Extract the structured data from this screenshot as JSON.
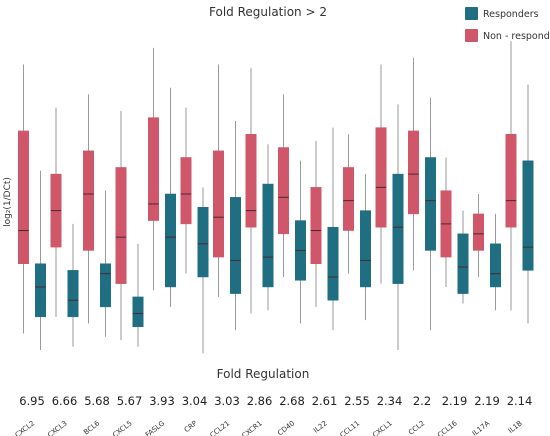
{
  "chart_data": {
    "type": "box",
    "title": "Fold Regulation > 2",
    "ylabel": "log₂(1/DCt)",
    "xlabel": "Fold Regulation",
    "legend": {
      "position": "top-right"
    },
    "series": [
      {
        "name": "Responders",
        "color": "#1f6e82"
      },
      {
        "name": "Non - responder",
        "color": "#d0566a"
      }
    ],
    "ylim": [
      0,
      10
    ],
    "categories": [
      "CXCL2",
      "CXCL3",
      "BCL6",
      "CXCL5",
      "FASLG",
      "CRP",
      "CCL21",
      "CXCR1",
      "CD40",
      "IL22",
      "CCL11",
      "CXCL1",
      "CCL2",
      "CCL16",
      "IL17A",
      "IL1B"
    ],
    "fold_regulation": [
      "6.95",
      "6.66",
      "5.68",
      "5.67",
      "3.93",
      "3.04",
      "3.03",
      "2.86",
      "2.68",
      "2.61",
      "2.55",
      "2.34",
      "2.2",
      "2.19",
      "2.19",
      "2.14"
    ],
    "nonresponders": [
      {
        "min": 0.8,
        "q1": 2.9,
        "median": 3.9,
        "q3": 6.9,
        "max": 8.9
      },
      {
        "min": 1.3,
        "q1": 3.4,
        "median": 4.5,
        "q3": 5.6,
        "max": 7.6
      },
      {
        "min": 1.1,
        "q1": 3.3,
        "median": 5.0,
        "q3": 6.3,
        "max": 8.0
      },
      {
        "min": 0.6,
        "q1": 2.3,
        "median": 3.7,
        "q3": 5.8,
        "max": 7.5
      },
      {
        "min": 2.1,
        "q1": 4.2,
        "median": 4.7,
        "q3": 7.3,
        "max": 9.4
      },
      {
        "min": 2.6,
        "q1": 4.1,
        "median": 5.0,
        "q3": 6.1,
        "max": 7.6
      },
      {
        "min": 1.9,
        "q1": 3.1,
        "median": 4.3,
        "q3": 6.3,
        "max": 8.9
      },
      {
        "min": 1.4,
        "q1": 4.0,
        "median": 4.5,
        "q3": 6.8,
        "max": 8.8
      },
      {
        "min": 2.5,
        "q1": 3.8,
        "median": 4.9,
        "q3": 6.4,
        "max": 8.0
      },
      {
        "min": 1.6,
        "q1": 2.9,
        "median": 3.9,
        "q3": 5.2,
        "max": 6.6
      },
      {
        "min": 2.6,
        "q1": 3.9,
        "median": 4.8,
        "q3": 5.8,
        "max": 6.8
      },
      {
        "min": 2.3,
        "q1": 4.0,
        "median": 5.2,
        "q3": 7.0,
        "max": 8.9
      },
      {
        "min": 2.7,
        "q1": 4.4,
        "median": 5.6,
        "q3": 6.9,
        "max": 9.1
      },
      {
        "min": 2.2,
        "q1": 3.1,
        "median": 4.1,
        "q3": 5.1,
        "max": 6.1
      },
      {
        "min": 2.5,
        "q1": 3.3,
        "median": 3.8,
        "q3": 4.4,
        "max": 5.0
      },
      {
        "min": 1.5,
        "q1": 4.0,
        "median": 4.8,
        "q3": 6.8,
        "max": 9.6
      }
    ],
    "responders": [
      {
        "min": 0.3,
        "q1": 1.3,
        "median": 2.2,
        "q3": 2.9,
        "max": 5.7
      },
      {
        "min": 0.4,
        "q1": 1.3,
        "median": 1.8,
        "q3": 2.7,
        "max": 4.1
      },
      {
        "min": 0.7,
        "q1": 1.6,
        "median": 2.6,
        "q3": 2.9,
        "max": 5.1
      },
      {
        "min": 0.4,
        "q1": 1.0,
        "median": 1.4,
        "q3": 1.9,
        "max": 3.5
      },
      {
        "min": 1.6,
        "q1": 2.2,
        "median": 3.7,
        "q3": 5.0,
        "max": 8.2
      },
      {
        "min": 0.2,
        "q1": 2.5,
        "median": 3.5,
        "q3": 4.6,
        "max": 5.2
      },
      {
        "min": 0.9,
        "q1": 2.0,
        "median": 3.0,
        "q3": 4.9,
        "max": 7.2
      },
      {
        "min": 1.5,
        "q1": 2.2,
        "median": 3.1,
        "q3": 5.3,
        "max": 6.5
      },
      {
        "min": 1.1,
        "q1": 2.4,
        "median": 3.3,
        "q3": 4.2,
        "max": 6.0
      },
      {
        "min": 0.9,
        "q1": 1.8,
        "median": 2.5,
        "q3": 4.0,
        "max": 7.0
      },
      {
        "min": 1.2,
        "q1": 2.2,
        "median": 3.0,
        "q3": 4.5,
        "max": 5.6
      },
      {
        "min": 0.3,
        "q1": 2.3,
        "median": 4.0,
        "q3": 5.6,
        "max": 7.7
      },
      {
        "min": 0.9,
        "q1": 3.3,
        "median": 4.8,
        "q3": 6.1,
        "max": 7.9
      },
      {
        "min": 1.7,
        "q1": 2.0,
        "median": 2.8,
        "q3": 3.8,
        "max": 4.5
      },
      {
        "min": 1.5,
        "q1": 2.2,
        "median": 2.6,
        "q3": 3.5,
        "max": 4.4
      },
      {
        "min": 1.1,
        "q1": 2.7,
        "median": 3.4,
        "q3": 6.0,
        "max": 8.3
      }
    ]
  }
}
